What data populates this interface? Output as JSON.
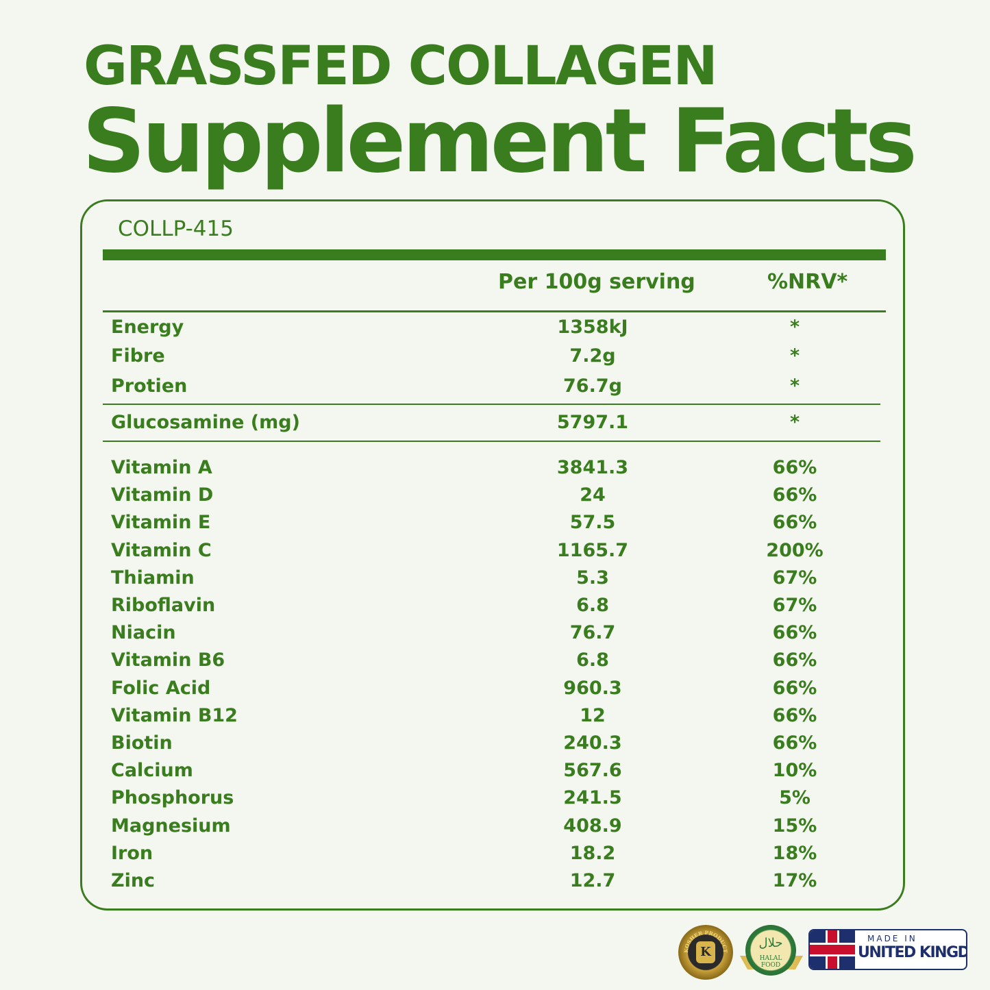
{
  "title": {
    "line1": "GRASSFED COLLAGEN",
    "line2": "Supplement Facts"
  },
  "product_code": "COLLP-415",
  "columns": {
    "serving": "Per 100g serving",
    "nrv": "%NRV*"
  },
  "macros": [
    {
      "name": "Energy",
      "value": "1358kJ",
      "nrv": "*"
    },
    {
      "name": "Fibre",
      "value": "7.2g",
      "nrv": "*"
    },
    {
      "name": "Protien",
      "value": "76.7g",
      "nrv": "*"
    }
  ],
  "glucosamine": {
    "name": "Glucosamine (mg)",
    "value": "5797.1",
    "nrv": "*"
  },
  "micros": [
    {
      "name": "Vitamin A",
      "value": "3841.3",
      "nrv": "66%"
    },
    {
      "name": "Vitamin D",
      "value": "24",
      "nrv": "66%"
    },
    {
      "name": "Vitamin E",
      "value": "57.5",
      "nrv": "66%"
    },
    {
      "name": "Vitamin C",
      "value": "1165.7",
      "nrv": "200%"
    },
    {
      "name": "Thiamin",
      "value": "5.3",
      "nrv": "67%"
    },
    {
      "name": "Riboflavin",
      "value": "6.8",
      "nrv": "67%"
    },
    {
      "name": "Niacin",
      "value": "76.7",
      "nrv": "66%"
    },
    {
      "name": "Vitamin B6",
      "value": "6.8",
      "nrv": "66%"
    },
    {
      "name": "Folic Acid",
      "value": "960.3",
      "nrv": "66%"
    },
    {
      "name": "Vitamin B12",
      "value": "12",
      "nrv": "66%"
    },
    {
      "name": "Biotin",
      "value": "240.3",
      "nrv": "66%"
    },
    {
      "name": "Calcium",
      "value": "567.6",
      "nrv": "10%"
    },
    {
      "name": "Phosphorus",
      "value": "241.5",
      "nrv": "5%"
    },
    {
      "name": "Magnesium",
      "value": "408.9",
      "nrv": "15%"
    },
    {
      "name": "Iron",
      "value": "18.2",
      "nrv": "18%"
    },
    {
      "name": "Zinc",
      "value": "12.7",
      "nrv": "17%"
    }
  ],
  "badges": {
    "kosher": "KOSHER PRODUCT",
    "kosher_letter": "K",
    "halal_arabic": "حلال",
    "halal": "HALAL FOOD",
    "made_in": "MADE IN",
    "country": "UNITED KINGDOM"
  },
  "colors": {
    "brand": "#3a7d1e",
    "background": "#f4f7ef",
    "uk_navy": "#1e2f6e"
  }
}
